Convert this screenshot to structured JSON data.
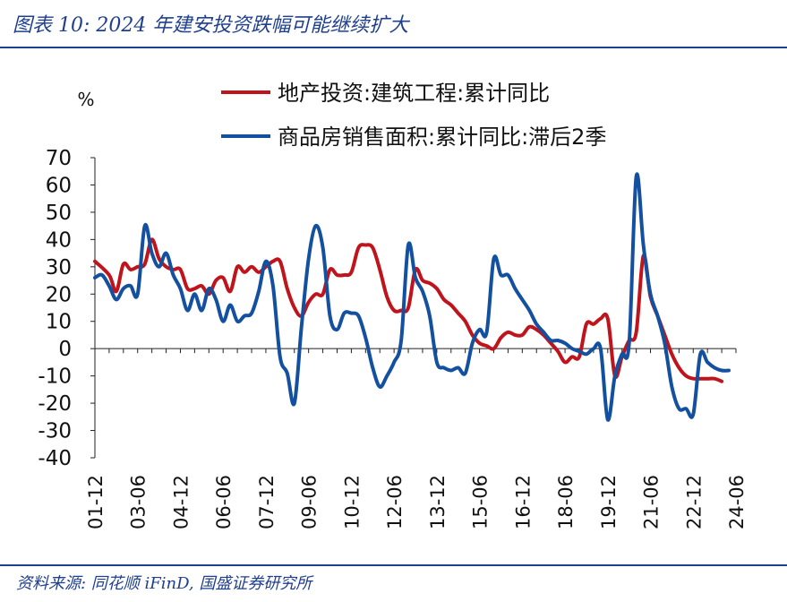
{
  "header": {
    "title": "图表 10:  2024 年建安投资跌幅可能继续扩大"
  },
  "footer": {
    "source": "资料来源: 同花顺 iFinD, 国盛证券研究所"
  },
  "colors": {
    "brand": "#1f3f8f",
    "series_red": "#c0141c",
    "series_blue": "#1450a0"
  },
  "chart_data": {
    "type": "line",
    "title": "",
    "xlabel": "",
    "ylabel": "%",
    "ylim": [
      -40,
      70
    ],
    "yticks": [
      70,
      60,
      50,
      40,
      30,
      20,
      10,
      0,
      -10,
      -20,
      -30,
      -40
    ],
    "grid": false,
    "legend_position": "top",
    "x_range": [
      "2001-12",
      "2024-06"
    ],
    "xtick_labels": [
      "01-12",
      "03-06",
      "04-12",
      "06-06",
      "07-12",
      "09-06",
      "10-12",
      "12-06",
      "13-12",
      "15-06",
      "16-12",
      "18-06",
      "19-12",
      "21-06",
      "22-12",
      "24-06"
    ],
    "series": [
      {
        "name": "地产投资:建筑工程:累计同比",
        "color": "#c0141c",
        "points": [
          [
            "2001-12",
            32
          ],
          [
            "2002-06",
            27
          ],
          [
            "2002-09",
            21
          ],
          [
            "2002-12",
            31
          ],
          [
            "2003-03",
            29
          ],
          [
            "2003-06",
            30
          ],
          [
            "2003-09",
            31
          ],
          [
            "2003-12",
            40
          ],
          [
            "2004-03",
            33
          ],
          [
            "2004-06",
            30
          ],
          [
            "2004-09",
            29
          ],
          [
            "2004-12",
            29
          ],
          [
            "2005-03",
            22
          ],
          [
            "2005-06",
            22
          ],
          [
            "2005-09",
            23
          ],
          [
            "2005-12",
            20
          ],
          [
            "2006-03",
            25
          ],
          [
            "2006-06",
            26
          ],
          [
            "2006-09",
            21
          ],
          [
            "2006-12",
            30
          ],
          [
            "2007-03",
            28
          ],
          [
            "2007-06",
            30
          ],
          [
            "2007-09",
            28
          ],
          [
            "2007-12",
            30
          ],
          [
            "2008-03",
            32
          ],
          [
            "2008-06",
            32
          ],
          [
            "2008-09",
            22
          ],
          [
            "2008-12",
            15
          ],
          [
            "2009-03",
            12
          ],
          [
            "2009-06",
            17
          ],
          [
            "2009-09",
            20
          ],
          [
            "2009-12",
            20
          ],
          [
            "2010-03",
            29
          ],
          [
            "2010-06",
            27
          ],
          [
            "2010-09",
            27
          ],
          [
            "2010-12",
            28
          ],
          [
            "2011-03",
            37
          ],
          [
            "2011-06",
            38
          ],
          [
            "2011-09",
            37
          ],
          [
            "2011-12",
            29
          ],
          [
            "2012-03",
            19
          ],
          [
            "2012-06",
            14
          ],
          [
            "2012-09",
            14
          ],
          [
            "2012-12",
            15
          ],
          [
            "2013-03",
            29
          ],
          [
            "2013-06",
            25
          ],
          [
            "2013-09",
            24
          ],
          [
            "2013-12",
            22
          ],
          [
            "2014-03",
            18
          ],
          [
            "2014-06",
            16
          ],
          [
            "2014-09",
            13
          ],
          [
            "2014-12",
            10
          ],
          [
            "2015-03",
            5
          ],
          [
            "2015-06",
            2
          ],
          [
            "2015-09",
            1
          ],
          [
            "2015-12",
            0
          ],
          [
            "2016-03",
            4
          ],
          [
            "2016-06",
            6
          ],
          [
            "2016-09",
            5
          ],
          [
            "2016-12",
            5
          ],
          [
            "2017-03",
            8
          ],
          [
            "2017-06",
            7
          ],
          [
            "2017-09",
            5
          ],
          [
            "2017-12",
            2
          ],
          [
            "2018-03",
            -1
          ],
          [
            "2018-06",
            -5
          ],
          [
            "2018-09",
            -3
          ],
          [
            "2018-12",
            -3
          ],
          [
            "2019-03",
            9
          ],
          [
            "2019-06",
            9
          ],
          [
            "2019-09",
            11
          ],
          [
            "2019-12",
            11
          ],
          [
            "2020-03",
            -10
          ],
          [
            "2020-06",
            -3
          ],
          [
            "2020-09",
            3
          ],
          [
            "2020-12",
            6
          ],
          [
            "2021-03",
            34
          ],
          [
            "2021-06",
            19
          ],
          [
            "2021-09",
            12
          ],
          [
            "2021-12",
            5
          ],
          [
            "2022-03",
            -2
          ],
          [
            "2022-06",
            -7
          ],
          [
            "2022-09",
            -10
          ],
          [
            "2022-12",
            -11
          ],
          [
            "2023-03",
            -11
          ],
          [
            "2023-06",
            -11
          ],
          [
            "2023-09",
            -11
          ],
          [
            "2023-12",
            -12
          ]
        ]
      },
      {
        "name": "商品房销售面积:累计同比:滞后2季",
        "color": "#1450a0",
        "points": [
          [
            "2001-12",
            26
          ],
          [
            "2002-03",
            27
          ],
          [
            "2002-06",
            23
          ],
          [
            "2002-09",
            18
          ],
          [
            "2002-12",
            22
          ],
          [
            "2003-03",
            23
          ],
          [
            "2003-06",
            20
          ],
          [
            "2003-09",
            45
          ],
          [
            "2003-12",
            35
          ],
          [
            "2004-03",
            30
          ],
          [
            "2004-06",
            35
          ],
          [
            "2004-09",
            27
          ],
          [
            "2004-12",
            22
          ],
          [
            "2005-03",
            14
          ],
          [
            "2005-06",
            20
          ],
          [
            "2005-09",
            14
          ],
          [
            "2005-12",
            22
          ],
          [
            "2006-03",
            18
          ],
          [
            "2006-06",
            10
          ],
          [
            "2006-09",
            16
          ],
          [
            "2006-12",
            10
          ],
          [
            "2007-03",
            12
          ],
          [
            "2007-06",
            13
          ],
          [
            "2007-09",
            21
          ],
          [
            "2007-12",
            32
          ],
          [
            "2008-03",
            23
          ],
          [
            "2008-06",
            -3
          ],
          [
            "2008-09",
            -9
          ],
          [
            "2008-12",
            -20
          ],
          [
            "2009-03",
            8
          ],
          [
            "2009-06",
            33
          ],
          [
            "2009-09",
            45
          ],
          [
            "2009-12",
            37
          ],
          [
            "2010-03",
            12
          ],
          [
            "2010-06",
            7
          ],
          [
            "2010-09",
            13
          ],
          [
            "2010-12",
            13
          ],
          [
            "2011-03",
            12
          ],
          [
            "2011-06",
            4
          ],
          [
            "2011-09",
            -7
          ],
          [
            "2011-12",
            -14
          ],
          [
            "2012-03",
            -10
          ],
          [
            "2012-06",
            -5
          ],
          [
            "2012-09",
            3
          ],
          [
            "2012-12",
            38
          ],
          [
            "2013-03",
            26
          ],
          [
            "2013-06",
            21
          ],
          [
            "2013-09",
            12
          ],
          [
            "2013-12",
            -5
          ],
          [
            "2014-03",
            -7
          ],
          [
            "2014-06",
            -8
          ],
          [
            "2014-09",
            -7
          ],
          [
            "2014-12",
            -9
          ],
          [
            "2015-03",
            2
          ],
          [
            "2015-06",
            7
          ],
          [
            "2015-09",
            6
          ],
          [
            "2015-12",
            33
          ],
          [
            "2016-03",
            27
          ],
          [
            "2016-06",
            27
          ],
          [
            "2016-09",
            22
          ],
          [
            "2016-12",
            18
          ],
          [
            "2017-03",
            14
          ],
          [
            "2017-06",
            9
          ],
          [
            "2017-09",
            6
          ],
          [
            "2017-12",
            3
          ],
          [
            "2018-03",
            3
          ],
          [
            "2018-06",
            2
          ],
          [
            "2018-09",
            0
          ],
          [
            "2018-12",
            -1
          ],
          [
            "2019-03",
            -2
          ],
          [
            "2019-06",
            0
          ],
          [
            "2019-09",
            0
          ],
          [
            "2019-12",
            -26
          ],
          [
            "2020-03",
            -10
          ],
          [
            "2020-06",
            -2
          ],
          [
            "2020-09",
            2
          ],
          [
            "2020-12",
            63
          ],
          [
            "2021-03",
            38
          ],
          [
            "2021-06",
            20
          ],
          [
            "2021-09",
            12
          ],
          [
            "2021-12",
            2
          ],
          [
            "2022-03",
            -14
          ],
          [
            "2022-06",
            -22
          ],
          [
            "2022-09",
            -22
          ],
          [
            "2022-12",
            -24
          ],
          [
            "2023-03",
            -2
          ],
          [
            "2023-06",
            -5
          ],
          [
            "2023-09",
            -7
          ],
          [
            "2023-12",
            -8
          ],
          [
            "2024-03",
            -8
          ]
        ]
      }
    ]
  }
}
